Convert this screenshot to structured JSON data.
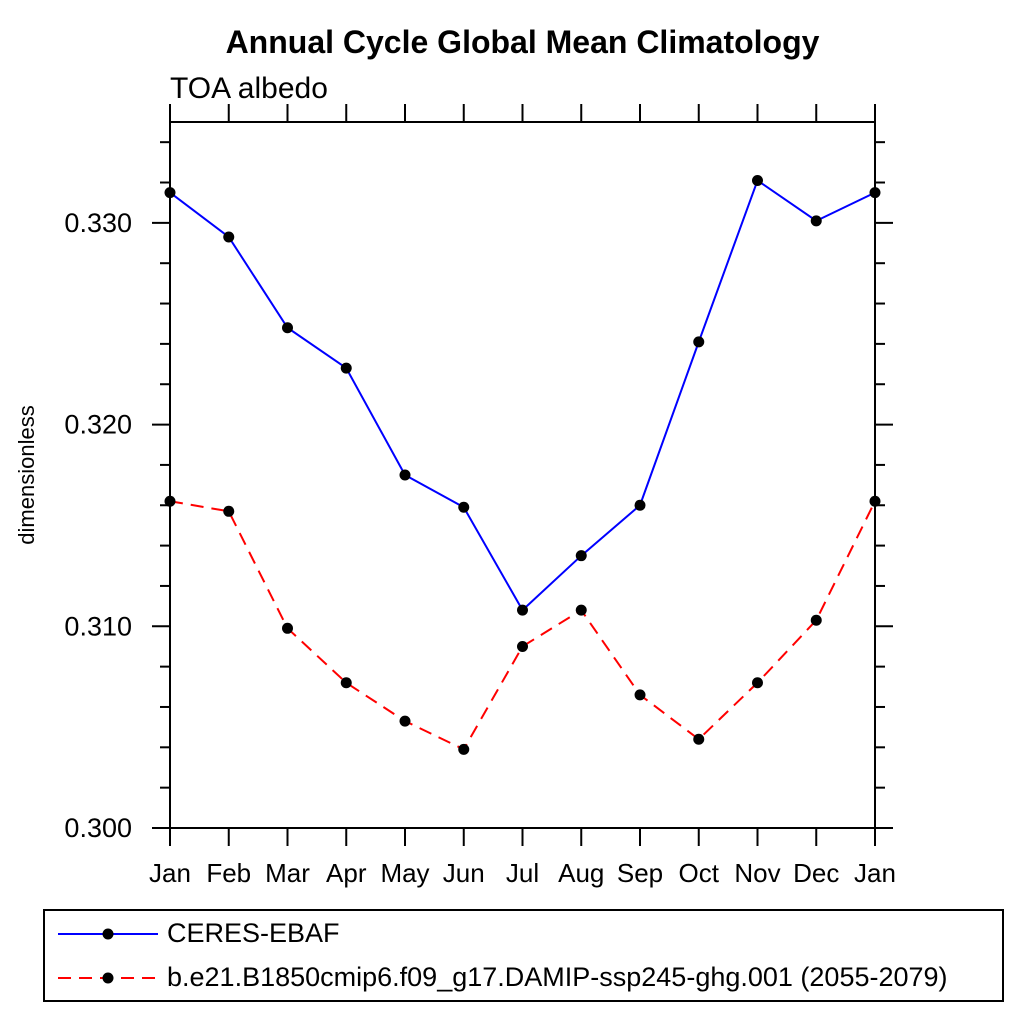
{
  "header": {
    "title": "Annual Cycle Global Mean Climatology",
    "subtitle": "TOA albedo"
  },
  "chart_data": {
    "type": "line",
    "title": "Annual Cycle Global Mean Climatology",
    "subtitle": "TOA albedo",
    "xlabel": "",
    "ylabel": "dimensionless",
    "categories": [
      "Jan",
      "Feb",
      "Mar",
      "Apr",
      "May",
      "Jun",
      "Jul",
      "Aug",
      "Sep",
      "Oct",
      "Nov",
      "Dec",
      "Jan"
    ],
    "ylim": [
      0.3,
      0.335
    ],
    "y_major_ticks": [
      0.3,
      0.31,
      0.32,
      0.33
    ],
    "y_minor_step": 0.002,
    "y_tick_format_decimals": 3,
    "grid": false,
    "legend_position": "bottom-left-box",
    "frame_color": "#000000",
    "marker_color": "#000000",
    "series": [
      {
        "name": "CERES-EBAF",
        "color": "#0000ff",
        "line_style": "solid",
        "marker": "filled-circle",
        "values": [
          0.3315,
          0.3293,
          0.3248,
          0.3228,
          0.3175,
          0.3159,
          0.3108,
          0.3135,
          0.316,
          0.3241,
          0.3321,
          0.3301,
          0.3315
        ]
      },
      {
        "name": "b.e21.B1850cmip6.f09_g17.DAMIP-ssp245-ghg.001 (2055-2079)",
        "color": "#ff0000",
        "line_style": "dashed",
        "marker": "filled-circle",
        "values": [
          0.3162,
          0.3157,
          0.3099,
          0.3072,
          0.3053,
          0.3039,
          0.309,
          0.3108,
          0.3066,
          0.3044,
          0.3072,
          0.3103,
          0.3162
        ]
      }
    ]
  }
}
